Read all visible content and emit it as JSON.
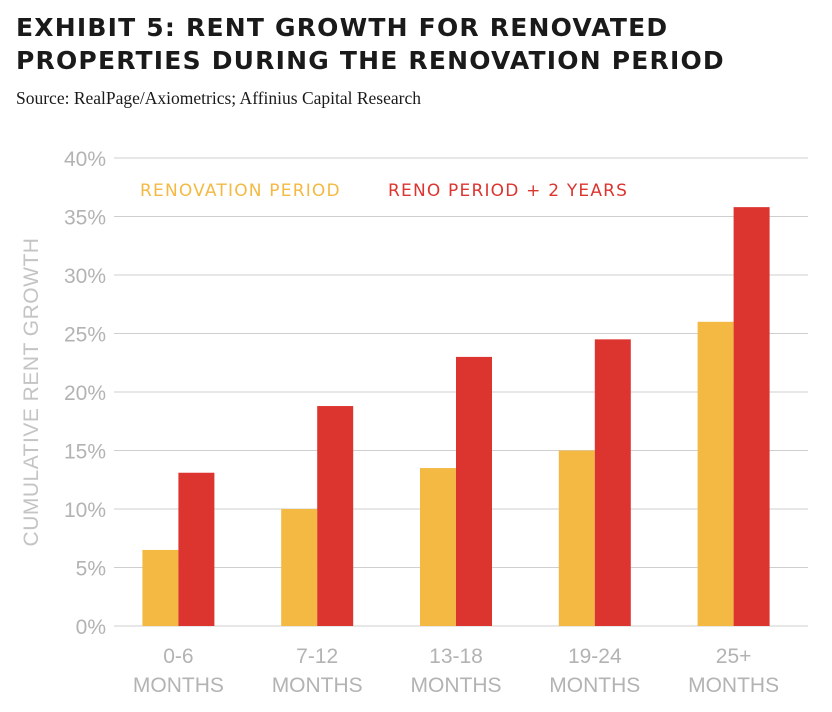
{
  "title_lines": [
    "EXHIBIT 5: RENT GROWTH FOR RENOVATED",
    "PROPERTIES DURING THE RENOVATION PERIOD"
  ],
  "source": "Source: RealPage/Axiometrics; Affinius Capital Research",
  "chart_data": {
    "type": "bar",
    "title": "EXHIBIT 5: RENT GROWTH FOR RENOVATED PROPERTIES DURING THE RENOVATION PERIOD",
    "ylabel": "CUMULATIVE RENT GROWTH",
    "xlabel": "",
    "ylim": [
      0,
      40
    ],
    "yticks": [
      0,
      5,
      10,
      15,
      20,
      25,
      30,
      35,
      40
    ],
    "ytick_labels": [
      "0%",
      "5%",
      "10%",
      "15%",
      "20%",
      "25%",
      "30%",
      "35%",
      "40%"
    ],
    "grid": true,
    "legend_position": "top-left",
    "categories": [
      [
        "0-6",
        "MONTHS"
      ],
      [
        "7-12",
        "MONTHS"
      ],
      [
        "13-18",
        "MONTHS"
      ],
      [
        "19-24",
        "MONTHS"
      ],
      [
        "25+",
        "MONTHS"
      ]
    ],
    "series": [
      {
        "name": "RENOVATION PERIOD",
        "color": "#f4b942",
        "values": [
          6.5,
          10.0,
          13.5,
          15.0,
          26.0
        ]
      },
      {
        "name": "RENO PERIOD + 2 YEARS",
        "color": "#dc3530",
        "values": [
          13.1,
          18.8,
          23.0,
          24.5,
          35.8
        ]
      }
    ]
  }
}
